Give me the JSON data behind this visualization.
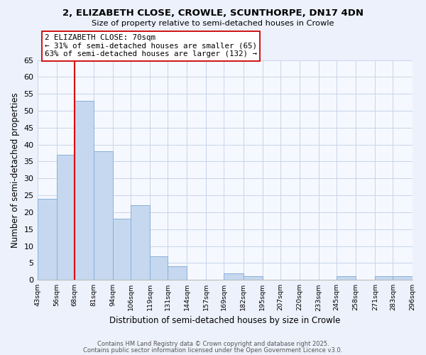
{
  "title": "2, ELIZABETH CLOSE, CROWLE, SCUNTHORPE, DN17 4DN",
  "subtitle": "Size of property relative to semi-detached houses in Crowle",
  "xlabel": "Distribution of semi-detached houses by size in Crowle",
  "ylabel": "Number of semi-detached properties",
  "bins": [
    43,
    56,
    68,
    81,
    94,
    106,
    119,
    131,
    144,
    157,
    169,
    182,
    195,
    207,
    220,
    233,
    245,
    258,
    271,
    283,
    296
  ],
  "bin_labels": [
    "43sqm",
    "56sqm",
    "68sqm",
    "81sqm",
    "94sqm",
    "106sqm",
    "119sqm",
    "131sqm",
    "144sqm",
    "157sqm",
    "169sqm",
    "182sqm",
    "195sqm",
    "207sqm",
    "220sqm",
    "233sqm",
    "245sqm",
    "258sqm",
    "271sqm",
    "283sqm",
    "296sqm"
  ],
  "values": [
    24,
    37,
    53,
    38,
    18,
    22,
    7,
    4,
    0,
    0,
    2,
    1,
    0,
    0,
    0,
    0,
    1,
    0,
    1,
    1
  ],
  "bar_color": "#c5d8ef",
  "bar_edge_color": "#8ab0d8",
  "property_line_x": 68,
  "property_line_color": "#dd0000",
  "annotation_title": "2 ELIZABETH CLOSE: 70sqm",
  "annotation_line1": "← 31% of semi-detached houses are smaller (65)",
  "annotation_line2": "63% of semi-detached houses are larger (132) →",
  "annotation_box_color": "#ffffff",
  "annotation_box_edge": "#cc0000",
  "ylim": [
    0,
    65
  ],
  "yticks": [
    0,
    5,
    10,
    15,
    20,
    25,
    30,
    35,
    40,
    45,
    50,
    55,
    60,
    65
  ],
  "footer_line1": "Contains HM Land Registry data © Crown copyright and database right 2025.",
  "footer_line2": "Contains public sector information licensed under the Open Government Licence v3.0.",
  "bg_color": "#edf1fb",
  "plot_bg_color": "#f5f8ff",
  "grid_color": "#c8d4e8"
}
